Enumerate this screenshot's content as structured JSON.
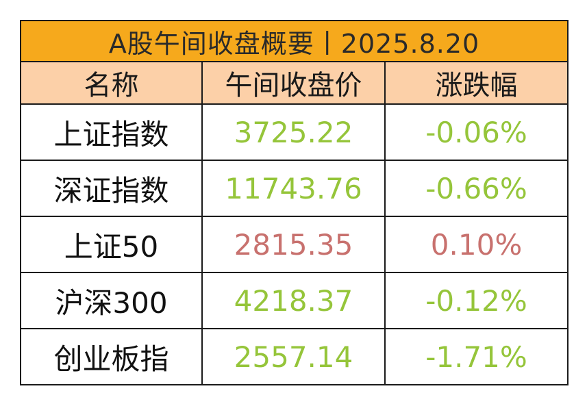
{
  "title": "A股午间收盘概要丨2025.8.20",
  "headers": {
    "name": "名称",
    "price": "午间收盘价",
    "change": "涨跌幅"
  },
  "colors": {
    "title_bg": "#f6a91c",
    "header_bg": "#fcd0a8",
    "down": "#95c53a",
    "up": "#c8716e"
  },
  "rows": [
    {
      "name": "上证指数",
      "price": "3725.22",
      "change": "-0.06%",
      "direction": "down"
    },
    {
      "name": "深证指数",
      "price": "11743.76",
      "change": "-0.66%",
      "direction": "down"
    },
    {
      "name": "上证50",
      "price": "2815.35",
      "change": "0.10%",
      "direction": "up"
    },
    {
      "name": "沪深300",
      "price": "4218.37",
      "change": "-0.12%",
      "direction": "down"
    },
    {
      "name": "创业板指",
      "price": "2557.14",
      "change": "-1.71%",
      "direction": "down"
    }
  ]
}
